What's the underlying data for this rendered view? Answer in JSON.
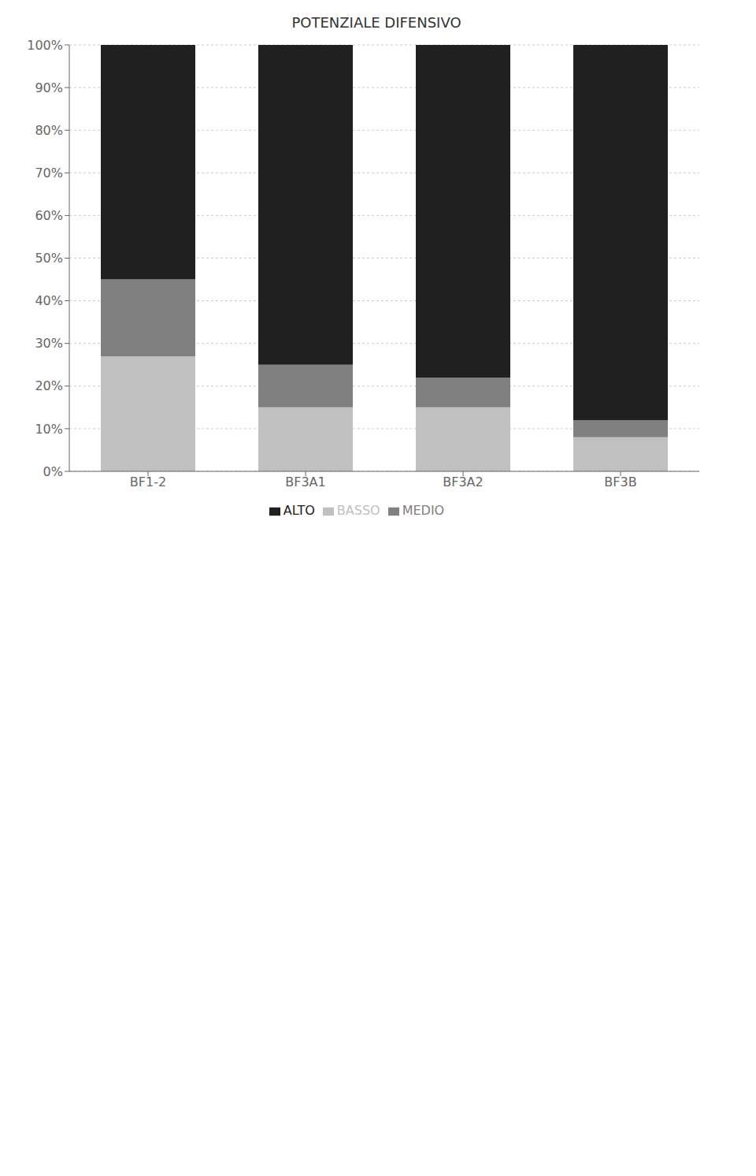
{
  "chart_data": {
    "type": "bar",
    "title": "POTENZIALE DIFENSIVO",
    "categories": [
      "BF1-2",
      "BF3A1",
      "BF3A2",
      "BF3B"
    ],
    "series": [
      {
        "name": "BASSO",
        "color": "#c0c0c0",
        "values": [
          0.27,
          0.15,
          0.15,
          0.08
        ]
      },
      {
        "name": "MEDIO",
        "color": "#808080",
        "values": [
          0.18,
          0.1,
          0.07,
          0.04
        ]
      },
      {
        "name": "ALTO",
        "color": "#202020",
        "values": [
          0.55,
          0.75,
          0.78,
          0.88
        ]
      }
    ],
    "stacked": true,
    "ylim": [
      0,
      1.0
    ],
    "yticks": [
      {
        "value": 0,
        "label": "0%"
      },
      {
        "value": 0.1,
        "label": "10%"
      },
      {
        "value": 0.2,
        "label": "20%"
      },
      {
        "value": 0.3,
        "label": "30%"
      },
      {
        "value": 0.4,
        "label": "40%"
      },
      {
        "value": 0.5,
        "label": "50%"
      },
      {
        "value": 0.6,
        "label": "60%"
      },
      {
        "value": 0.7,
        "label": "70%"
      },
      {
        "value": 0.8,
        "label": "80%"
      },
      {
        "value": 0.9,
        "label": "90%"
      },
      {
        "value": 1.0,
        "label": "100%"
      }
    ],
    "grid": true,
    "legend": "bottom"
  }
}
